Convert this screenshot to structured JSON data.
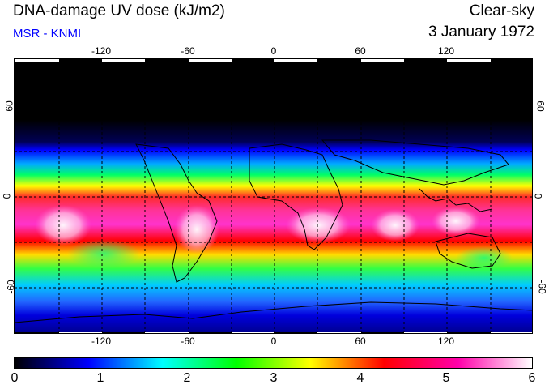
{
  "header": {
    "title": "DNA-damage UV dose (kJ/m2)",
    "subtitle": "MSR - KNMI",
    "mode": "Clear-sky",
    "date": "3 January 1972"
  },
  "map": {
    "lon_ticks": [
      "-120",
      "-60",
      "0",
      "60",
      "120"
    ],
    "lat_ticks": [
      "60",
      "0",
      "-60"
    ],
    "lat_ticks_right": [
      "60",
      "0",
      "-60"
    ]
  },
  "colorbar": {
    "labels": [
      "0",
      "1",
      "2",
      "3",
      "4",
      "5",
      "6"
    ],
    "colors": [
      "#000000",
      "#0000ff",
      "#00ffff",
      "#00ff00",
      "#ffff00",
      "#ff0000",
      "#ff00aa",
      "#ffffff"
    ]
  }
}
